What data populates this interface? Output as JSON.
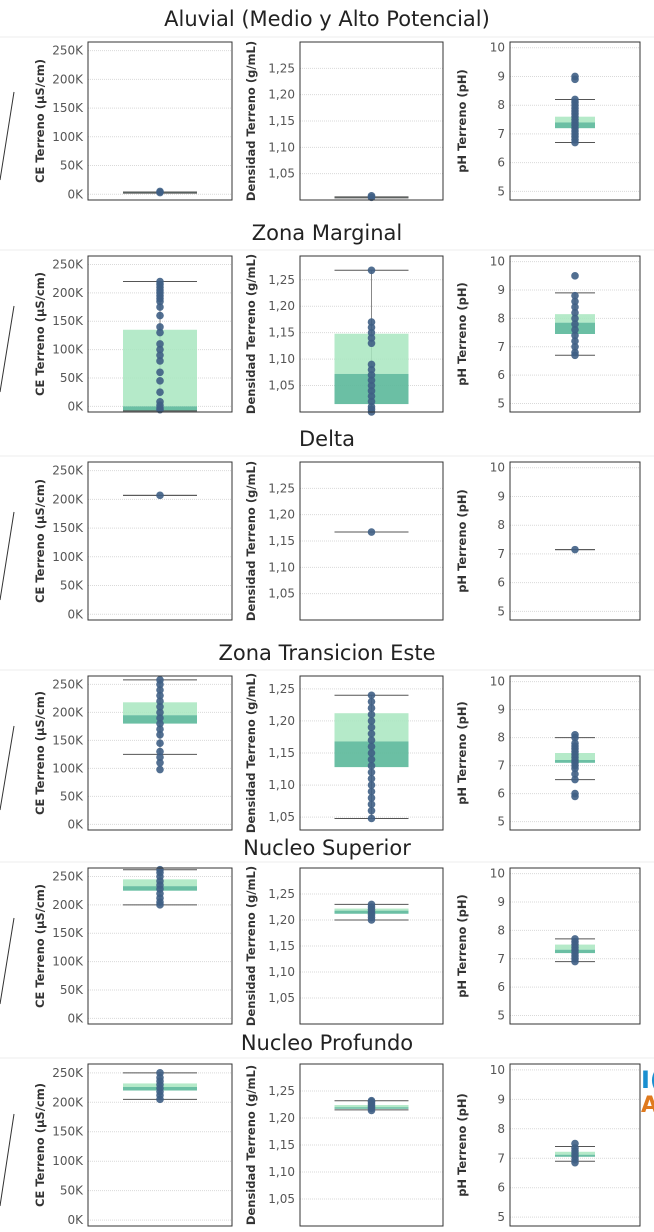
{
  "colors": {
    "box_light": "#a8e6bf",
    "box_dark": "#5bb89a",
    "point": "#3f5f85",
    "whisker": "#555555",
    "frame": "#333333",
    "grid": "#d9d9d9",
    "label": "#555555",
    "title": "#222222",
    "accent_blue": "#1a8fd0",
    "accent_orange": "#e07a1e"
  },
  "edge_fragments": {
    "blue": "I(",
    "orange": "A"
  },
  "chart_data": [
    {
      "title": "Aluvial (Medio y Alto Potencial)",
      "panels": [
        {
          "type": "box",
          "ylabel": "CE Terreno (µS/cm)",
          "ticks": [
            "0K",
            "50K",
            "100K",
            "150K",
            "200K",
            "250K"
          ],
          "tick_values": [
            0,
            50000,
            100000,
            150000,
            200000,
            250000
          ],
          "ylim": [
            -10000,
            265000
          ],
          "whisker": [
            2000,
            4000
          ],
          "q1": 2000,
          "median": 3000,
          "q3": 4000,
          "points": [
            3000,
            5000
          ]
        },
        {
          "type": "box",
          "ylabel": "Densidad Terreno (g/mL)",
          "ticks": [
            "1,05",
            "1,10",
            "1,15",
            "1,20",
            "1,25"
          ],
          "tick_values": [
            1.05,
            1.1,
            1.15,
            1.2,
            1.25
          ],
          "ylim": [
            1.0,
            1.3
          ],
          "whisker": [
            1.004,
            1.006
          ],
          "q1": 1.004,
          "median": 1.005,
          "q3": 1.006,
          "points": [
            1.005,
            1.008
          ]
        },
        {
          "type": "box",
          "ylabel": "pH Terreno (pH)",
          "ticks": [
            "5",
            "6",
            "7",
            "8",
            "9",
            "10"
          ],
          "tick_values": [
            5,
            6,
            7,
            8,
            9,
            10
          ],
          "ylim": [
            4.7,
            10.2
          ],
          "whisker": [
            6.7,
            8.2
          ],
          "q1": 7.2,
          "median": 7.4,
          "q3": 7.6,
          "points": [
            6.7,
            6.8,
            6.9,
            7.0,
            7.1,
            7.2,
            7.3,
            7.4,
            7.5,
            7.6,
            7.7,
            7.8,
            7.9,
            8.0,
            8.1,
            8.2,
            8.9,
            9.0
          ]
        }
      ]
    },
    {
      "title": "Zona Marginal",
      "panels": [
        {
          "type": "box",
          "ylabel": "CE Terreno (µS/cm)",
          "ticks": [
            "0K",
            "50K",
            "100K",
            "150K",
            "200K",
            "250K"
          ],
          "tick_values": [
            0,
            50000,
            100000,
            150000,
            200000,
            250000
          ],
          "ylim": [
            -10000,
            265000
          ],
          "whisker": [
            -8000,
            220000
          ],
          "q1": -8000,
          "median": 0,
          "q3": 135000,
          "points": [
            -6000,
            -3000,
            2000,
            8000,
            25000,
            45000,
            60000,
            80000,
            90000,
            100000,
            110000,
            130000,
            140000,
            160000,
            175000,
            185000,
            190000,
            195000,
            200000,
            205000,
            210000,
            215000,
            220000
          ]
        },
        {
          "type": "box",
          "ylabel": "Densidad Terreno (g/mL)",
          "ticks": [
            "1,05",
            "1,10",
            "1,15",
            "1,20",
            "1,25"
          ],
          "tick_values": [
            1.05,
            1.1,
            1.15,
            1.2,
            1.25
          ],
          "ylim": [
            1.0,
            1.295
          ],
          "whisker": [
            1.0,
            1.268
          ],
          "q1": 1.015,
          "median": 1.072,
          "q3": 1.148,
          "points": [
            1.0,
            1.005,
            1.01,
            1.02,
            1.03,
            1.04,
            1.05,
            1.06,
            1.07,
            1.08,
            1.09,
            1.13,
            1.14,
            1.15,
            1.16,
            1.17,
            1.268
          ]
        },
        {
          "type": "box",
          "ylabel": "pH Terreno (pH)",
          "ticks": [
            "5",
            "6",
            "7",
            "8",
            "9",
            "10"
          ],
          "tick_values": [
            5,
            6,
            7,
            8,
            9,
            10
          ],
          "ylim": [
            4.7,
            10.2
          ],
          "whisker": [
            6.7,
            8.9
          ],
          "q1": 7.45,
          "median": 7.85,
          "q3": 8.15,
          "points": [
            6.7,
            6.8,
            7.0,
            7.2,
            7.4,
            7.6,
            7.8,
            8.0,
            8.2,
            8.4,
            8.6,
            8.8,
            9.5
          ]
        }
      ]
    },
    {
      "title": "Delta",
      "panels": [
        {
          "type": "box",
          "ylabel": "CE Terreno (µS/cm)",
          "ticks": [
            "0K",
            "50K",
            "100K",
            "150K",
            "200K",
            "250K"
          ],
          "tick_values": [
            0,
            50000,
            100000,
            150000,
            200000,
            250000
          ],
          "ylim": [
            -10000,
            265000
          ],
          "whisker": [
            207000,
            207000
          ],
          "q1": 207000,
          "median": 207000,
          "q3": 207000,
          "points": [
            207000
          ]
        },
        {
          "type": "box",
          "ylabel": "Densidad Terreno (g/mL)",
          "ticks": [
            "1,05",
            "1,10",
            "1,15",
            "1,20",
            "1,25"
          ],
          "tick_values": [
            1.05,
            1.1,
            1.15,
            1.2,
            1.25
          ],
          "ylim": [
            1.0,
            1.3
          ],
          "whisker": [
            1.167,
            1.167
          ],
          "q1": 1.167,
          "median": 1.167,
          "q3": 1.167,
          "points": [
            1.167
          ]
        },
        {
          "type": "box",
          "ylabel": "pH Terreno (pH)",
          "ticks": [
            "5",
            "6",
            "7",
            "8",
            "9",
            "10"
          ],
          "tick_values": [
            5,
            6,
            7,
            8,
            9,
            10
          ],
          "ylim": [
            4.7,
            10.2
          ],
          "whisker": [
            7.15,
            7.15
          ],
          "q1": 7.15,
          "median": 7.15,
          "q3": 7.15,
          "points": [
            7.15
          ]
        }
      ]
    },
    {
      "title": "Zona Transicion Este",
      "panels": [
        {
          "type": "box",
          "ylabel": "CE Terreno (µS/cm)",
          "ticks": [
            "0K",
            "50K",
            "100K",
            "150K",
            "200K",
            "250K"
          ],
          "tick_values": [
            0,
            50000,
            100000,
            150000,
            200000,
            250000
          ],
          "ylim": [
            -10000,
            265000
          ],
          "whisker": [
            125000,
            258000
          ],
          "q1": 180000,
          "median": 195000,
          "q3": 218000,
          "points": [
            98000,
            110000,
            120000,
            130000,
            145000,
            160000,
            170000,
            180000,
            190000,
            200000,
            210000,
            220000,
            230000,
            240000,
            250000,
            258000
          ]
        },
        {
          "type": "box",
          "ylabel": "Densidad Terreno (g/mL)",
          "ticks": [
            "1,05",
            "1,10",
            "1,15",
            "1,20",
            "1,25"
          ],
          "tick_values": [
            1.05,
            1.1,
            1.15,
            1.2,
            1.25
          ],
          "ylim": [
            1.03,
            1.27
          ],
          "whisker": [
            1.048,
            1.24
          ],
          "q1": 1.128,
          "median": 1.168,
          "q3": 1.212,
          "points": [
            1.048,
            1.06,
            1.07,
            1.08,
            1.09,
            1.1,
            1.11,
            1.12,
            1.13,
            1.14,
            1.15,
            1.16,
            1.17,
            1.18,
            1.19,
            1.2,
            1.21,
            1.22,
            1.23,
            1.24
          ]
        },
        {
          "type": "box",
          "ylabel": "pH Terreno (pH)",
          "ticks": [
            "5",
            "6",
            "7",
            "8",
            "9",
            "10"
          ],
          "tick_values": [
            5,
            6,
            7,
            8,
            9,
            10
          ],
          "ylim": [
            4.7,
            10.2
          ],
          "whisker": [
            6.5,
            8.0
          ],
          "q1": 7.1,
          "median": 7.2,
          "q3": 7.45,
          "points": [
            5.9,
            6.0,
            6.5,
            6.7,
            6.9,
            7.0,
            7.1,
            7.2,
            7.3,
            7.4,
            7.5,
            7.6,
            7.7,
            7.8,
            8.0,
            8.1
          ]
        }
      ]
    },
    {
      "title": "Nucleo Superior",
      "panels": [
        {
          "type": "box",
          "ylabel": "CE Terreno (µS/cm)",
          "ticks": [
            "0K",
            "50K",
            "100K",
            "150K",
            "200K",
            "250K"
          ],
          "tick_values": [
            0,
            50000,
            100000,
            150000,
            200000,
            250000
          ],
          "ylim": [
            -10000,
            265000
          ],
          "whisker": [
            200000,
            262000
          ],
          "q1": 225000,
          "median": 233000,
          "q3": 245000,
          "points": [
            200000,
            205000,
            212000,
            220000,
            228000,
            235000,
            242000,
            250000,
            257000,
            262000
          ]
        },
        {
          "type": "box",
          "ylabel": "Densidad Terreno (g/mL)",
          "ticks": [
            "1,05",
            "1,10",
            "1,15",
            "1,20",
            "1,25"
          ],
          "tick_values": [
            1.05,
            1.1,
            1.15,
            1.2,
            1.25
          ],
          "ylim": [
            1.0,
            1.3
          ],
          "whisker": [
            1.2,
            1.23
          ],
          "q1": 1.212,
          "median": 1.218,
          "q3": 1.222,
          "points": [
            1.2,
            1.205,
            1.21,
            1.215,
            1.22,
            1.225,
            1.23
          ]
        },
        {
          "type": "box",
          "ylabel": "pH Terreno (pH)",
          "ticks": [
            "5",
            "6",
            "7",
            "8",
            "9",
            "10"
          ],
          "tick_values": [
            5,
            6,
            7,
            8,
            9,
            10
          ],
          "ylim": [
            4.7,
            10.2
          ],
          "whisker": [
            6.9,
            7.7
          ],
          "q1": 7.2,
          "median": 7.32,
          "q3": 7.5,
          "points": [
            6.9,
            7.0,
            7.1,
            7.2,
            7.3,
            7.4,
            7.5,
            7.6,
            7.7
          ]
        }
      ]
    },
    {
      "title": "Nucleo Profundo",
      "panels": [
        {
          "type": "box",
          "ylabel": "CE Terreno (µS/cm)",
          "ticks": [
            "0K",
            "50K",
            "100K",
            "150K",
            "200K",
            "250K"
          ],
          "tick_values": [
            0,
            50000,
            100000,
            150000,
            200000,
            250000
          ],
          "ylim": [
            -10000,
            265000
          ],
          "whisker": [
            205000,
            250000
          ],
          "q1": 220000,
          "median": 226000,
          "q3": 232000,
          "points": [
            205000,
            212000,
            218000,
            224000,
            230000,
            236000,
            242000,
            250000
          ]
        },
        {
          "type": "box",
          "ylabel": "Densidad Terreno (g/mL)",
          "ticks": [
            "1,05",
            "1,10",
            "1,15",
            "1,20",
            "1,25"
          ],
          "tick_values": [
            1.05,
            1.1,
            1.15,
            1.2,
            1.25
          ],
          "ylim": [
            1.0,
            1.3
          ],
          "whisker": [
            1.215,
            1.232
          ],
          "q1": 1.217,
          "median": 1.22,
          "q3": 1.224,
          "points": [
            1.214,
            1.218,
            1.222,
            1.226,
            1.23,
            1.232
          ]
        },
        {
          "type": "box",
          "ylabel": "pH Terreno (pH)",
          "ticks": [
            "5",
            "6",
            "7",
            "8",
            "9",
            "10"
          ],
          "tick_values": [
            5,
            6,
            7,
            8,
            9,
            10
          ],
          "ylim": [
            4.7,
            10.2
          ],
          "whisker": [
            6.9,
            7.4
          ],
          "q1": 7.05,
          "median": 7.12,
          "q3": 7.22,
          "points": [
            6.85,
            6.95,
            7.05,
            7.15,
            7.25,
            7.35,
            7.5
          ]
        }
      ]
    }
  ]
}
